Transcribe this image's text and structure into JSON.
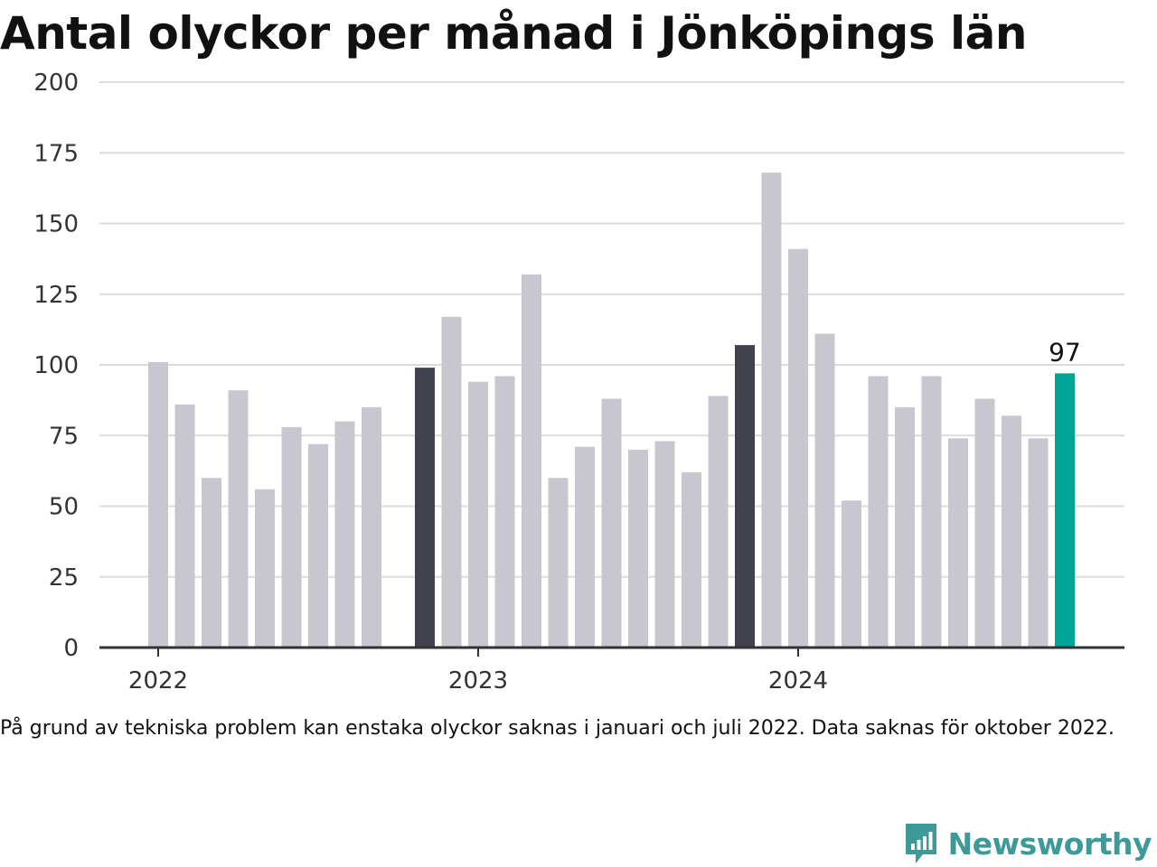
{
  "title": "Antal olyckor per månad i Jönköpings län",
  "footnote": "På grund av tekniska problem kan enstaka olyckor saknas i januari och juli 2022. Data saknas för oktober 2022.",
  "brand": {
    "name": "Newsworthy",
    "icon": "newsworthy-logo-icon",
    "color": "#3e9a98"
  },
  "chart_data": {
    "type": "bar",
    "ylim": [
      0,
      200
    ],
    "yticks": [
      0,
      25,
      50,
      75,
      100,
      125,
      150,
      175,
      200
    ],
    "x_tick_labels": [
      {
        "label": "2022",
        "month_index": 0
      },
      {
        "label": "2023",
        "month_index": 12
      },
      {
        "label": "2024",
        "month_index": 24
      }
    ],
    "grid": true,
    "colors": {
      "default": "#c8c7cf",
      "january": "#41404d",
      "latest": "#00a596",
      "grid": "#dcdcdc",
      "axis": "#333333"
    },
    "bars": [
      {
        "month": "2022-01",
        "value": 101
      },
      {
        "month": "2022-02",
        "value": 86
      },
      {
        "month": "2022-03",
        "value": 60
      },
      {
        "month": "2022-04",
        "value": 91
      },
      {
        "month": "2022-05",
        "value": 56
      },
      {
        "month": "2022-06",
        "value": 78
      },
      {
        "month": "2022-07",
        "value": 72
      },
      {
        "month": "2022-08",
        "value": 80
      },
      {
        "month": "2022-09",
        "value": 85
      },
      {
        "month": "2022-10",
        "value": null
      },
      {
        "month": "2022-11",
        "value": 99,
        "highlight": "january"
      },
      {
        "month": "2022-12",
        "value": 117
      },
      {
        "month": "2023-01",
        "value": 94
      },
      {
        "month": "2023-02",
        "value": 96
      },
      {
        "month": "2023-03",
        "value": 132
      },
      {
        "month": "2023-04",
        "value": 60
      },
      {
        "month": "2023-05",
        "value": 71
      },
      {
        "month": "2023-06",
        "value": 88
      },
      {
        "month": "2023-07",
        "value": 70
      },
      {
        "month": "2023-08",
        "value": 73
      },
      {
        "month": "2023-09",
        "value": 62
      },
      {
        "month": "2023-10",
        "value": 89
      },
      {
        "month": "2023-11",
        "value": 107,
        "highlight": "january"
      },
      {
        "month": "2023-12",
        "value": 168
      },
      {
        "month": "2024-01",
        "value": 141
      },
      {
        "month": "2024-02",
        "value": 111
      },
      {
        "month": "2024-03",
        "value": 52
      },
      {
        "month": "2024-04",
        "value": 96
      },
      {
        "month": "2024-05",
        "value": 85
      },
      {
        "month": "2024-06",
        "value": 96
      },
      {
        "month": "2024-07",
        "value": 74
      },
      {
        "month": "2024-08",
        "value": 88
      },
      {
        "month": "2024-09",
        "value": 82
      },
      {
        "month": "2024-10",
        "value": 74
      },
      {
        "month": "2024-11",
        "value": 97,
        "highlight": "latest"
      }
    ],
    "data_labels": [
      {
        "month": "2024-11",
        "text": "97"
      }
    ]
  }
}
